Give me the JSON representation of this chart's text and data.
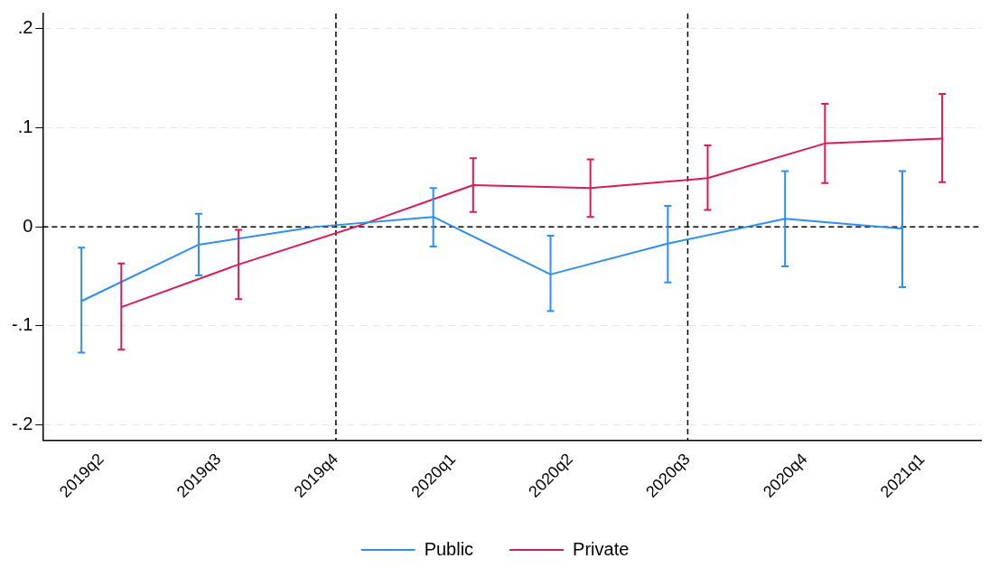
{
  "chart_data": {
    "type": "line",
    "categories": [
      "2019q2",
      "2019q3",
      "2019q4",
      "2020q1",
      "2020q2",
      "2020q3",
      "2020q4",
      "2021q1"
    ],
    "series": [
      {
        "name": "Public",
        "color": "#2e8ff0",
        "values": [
          -0.075,
          -0.018,
          0,
          0.01,
          -0.048,
          -0.017,
          0.008,
          -0.002
        ],
        "errors": [
          [
            -0.127,
            -0.021
          ],
          [
            -0.049,
            0.013
          ],
          null,
          [
            -0.02,
            0.039
          ],
          [
            -0.085,
            -0.009
          ],
          [
            -0.056,
            0.021
          ],
          [
            -0.04,
            0.056
          ],
          [
            -0.061,
            0.056
          ]
        ]
      },
      {
        "name": "Private",
        "color": "#d81b5a",
        "values": [
          -0.081,
          -0.038,
          0,
          0.042,
          0.039,
          0.049,
          0.084,
          0.089
        ],
        "errors": [
          [
            -0.124,
            -0.037
          ],
          [
            -0.073,
            -0.003
          ],
          null,
          [
            0.015,
            0.069
          ],
          [
            0.01,
            0.068
          ],
          [
            0.017,
            0.082
          ],
          [
            0.044,
            0.124
          ],
          [
            0.045,
            0.134
          ]
        ]
      }
    ],
    "ylim": [
      -0.215,
      0.215
    ],
    "yticks": [
      {
        "value": -0.2,
        "label": "-.2"
      },
      {
        "value": -0.1,
        "label": "-.1"
      },
      {
        "value": 0,
        "label": "0"
      },
      {
        "value": 0.1,
        "label": ".1"
      },
      {
        "value": 0.2,
        "label": ".2"
      }
    ],
    "ref_lines": [
      {
        "axis": "x",
        "value": "2019q4",
        "color": "#000000",
        "line_style": "dashed"
      },
      {
        "axis": "x",
        "value": "2020q3",
        "color": "#000000",
        "line_style": "dashed"
      },
      {
        "axis": "y",
        "value": 0,
        "color": "#000000",
        "line_style": "dashed"
      }
    ],
    "grid": "y",
    "legend": "bottom",
    "marker": "none",
    "line_style": "solid"
  }
}
